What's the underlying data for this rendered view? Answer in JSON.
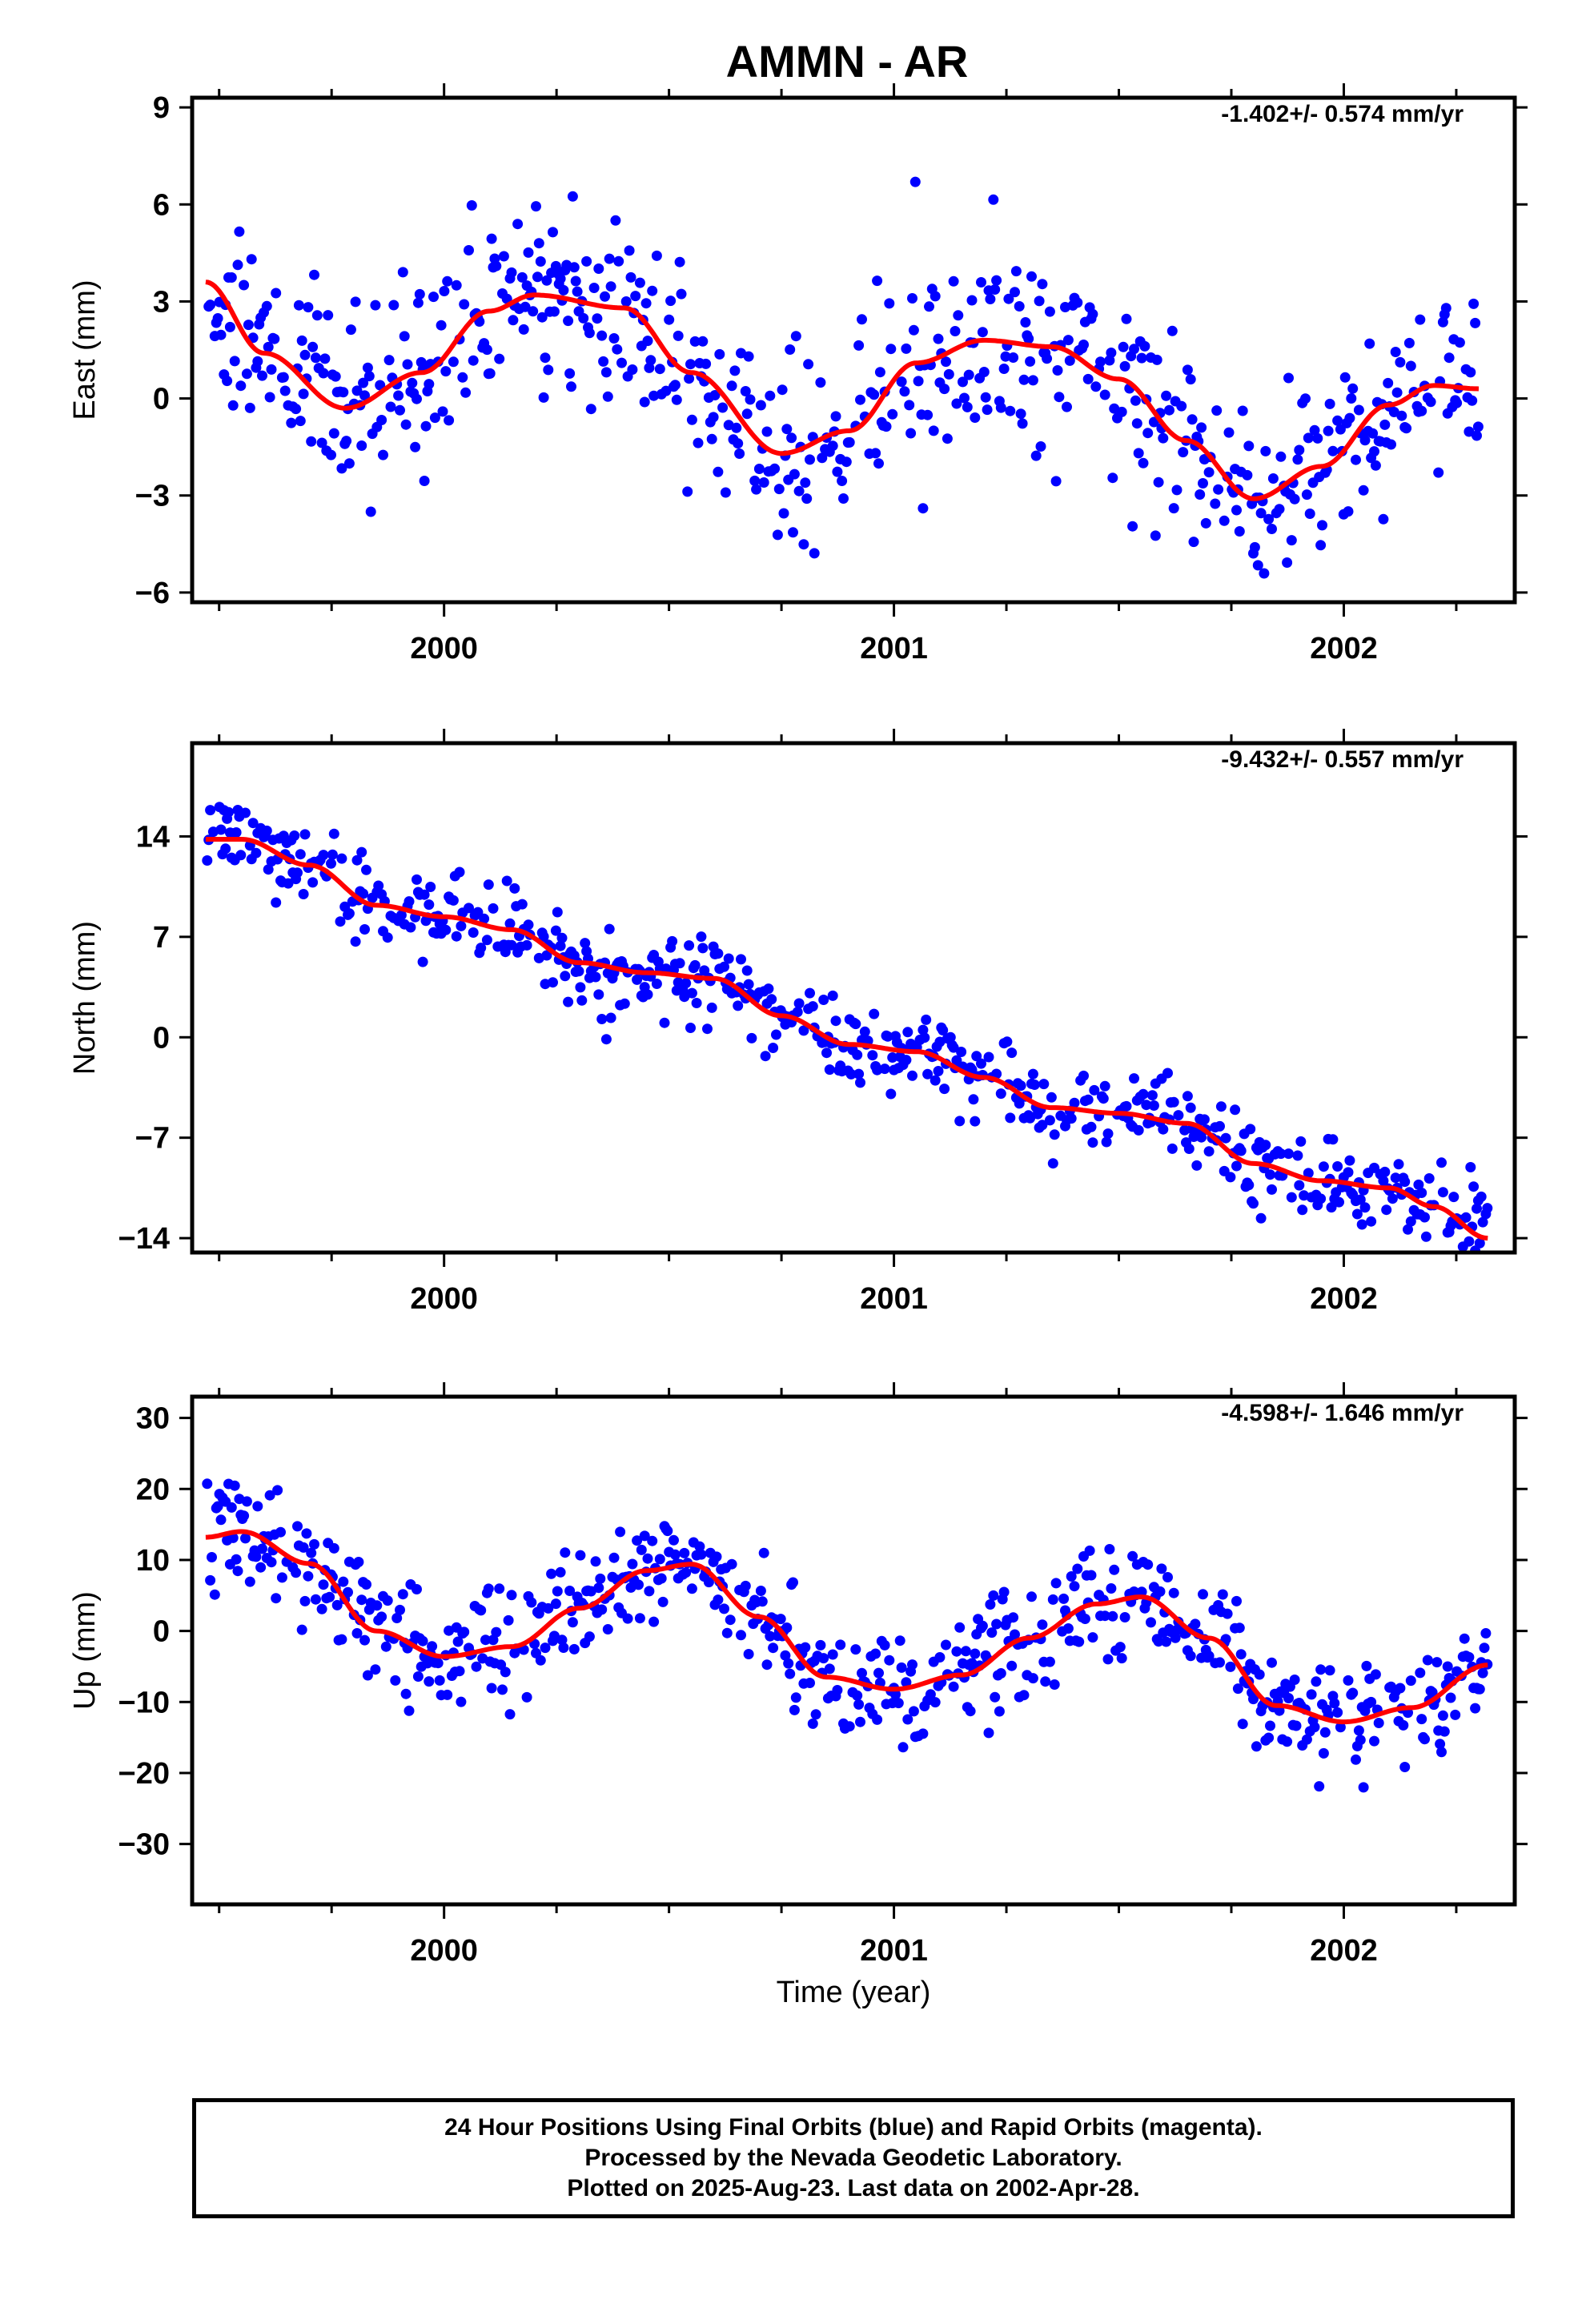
{
  "chart_data": [
    {
      "type": "scatter",
      "title": "AMMN - AR",
      "ylabel": "East (mm)",
      "xlabel": "",
      "ylim": [
        -6.3,
        9.3
      ],
      "yticks": [
        -6,
        -3,
        0,
        3,
        6,
        9
      ],
      "ytick_labels": [
        "−6",
        "−3",
        "0",
        "3",
        "6",
        "9"
      ],
      "xlim": [
        1999.44,
        2002.38
      ],
      "xticks": [
        2000,
        2001,
        2002
      ],
      "xtick_labels": [
        "2000",
        "2001",
        "2002"
      ],
      "rate": "-1.402+/- 0.574 mm/yr",
      "trend": {
        "x": [
          1999.47,
          1999.6,
          1999.78,
          1999.95,
          2000.1,
          2000.2,
          2000.4,
          2000.55,
          2000.75,
          2000.9,
          2001.05,
          2001.2,
          2001.35,
          2001.5,
          2001.65,
          2001.8,
          2001.95,
          2002.1,
          2002.2,
          2002.3
        ],
        "y": [
          3.6,
          1.4,
          -0.3,
          0.8,
          2.7,
          3.2,
          2.8,
          0.8,
          -1.7,
          -1.0,
          1.1,
          1.8,
          1.6,
          0.6,
          -1.3,
          -3.1,
          -2.1,
          -0.2,
          0.4,
          0.3
        ]
      },
      "noise": 1.5,
      "seed": 11
    },
    {
      "type": "scatter",
      "title": "",
      "ylabel": "North (mm)",
      "xlabel": "",
      "ylim": [
        -15,
        20.5
      ],
      "yticks": [
        -14,
        -7,
        0,
        7,
        14
      ],
      "ytick_labels": [
        "−14",
        "−7",
        "0",
        "7",
        "14"
      ],
      "xlim": [
        1999.44,
        2002.38
      ],
      "xticks": [
        2000,
        2001,
        2002
      ],
      "xtick_labels": [
        "2000",
        "2001",
        "2002"
      ],
      "rate": "-9.432+/- 0.557 mm/yr",
      "trend": {
        "x": [
          1999.47,
          1999.55,
          1999.7,
          1999.85,
          2000.0,
          2000.15,
          2000.3,
          2000.45,
          2000.6,
          2000.75,
          2000.9,
          2001.05,
          2001.2,
          2001.35,
          2001.5,
          2001.65,
          2001.8,
          2001.95,
          2002.1,
          2002.2,
          2002.32
        ],
        "y": [
          13.8,
          13.8,
          12.0,
          9.2,
          8.4,
          7.5,
          5.2,
          4.5,
          4.1,
          1.5,
          -0.5,
          -1.0,
          -2.8,
          -4.9,
          -5.3,
          -6.0,
          -8.8,
          -10.0,
          -10.5,
          -11.8,
          -14.0
        ]
      },
      "noise": 1.4,
      "seed": 23
    },
    {
      "type": "scatter",
      "title": "",
      "ylabel": "Up (mm)",
      "xlabel": "Time (year)",
      "ylim": [
        -38.5,
        33
      ],
      "yticks": [
        -30,
        -20,
        -10,
        0,
        10,
        20,
        30
      ],
      "ytick_labels": [
        "−30",
        "−20",
        "−10",
        "0",
        "10",
        "20",
        "30"
      ],
      "xlim": [
        1999.44,
        2002.38
      ],
      "xticks": [
        2000,
        2001,
        2002
      ],
      "xtick_labels": [
        "2000",
        "2001",
        "2002"
      ],
      "rate": "-4.598+/- 1.646 mm/yr",
      "trend": {
        "x": [
          1999.47,
          1999.55,
          1999.7,
          1999.85,
          2000.0,
          2000.15,
          2000.3,
          2000.45,
          2000.55,
          2000.7,
          2000.85,
          2001.0,
          2001.15,
          2001.3,
          2001.45,
          2001.55,
          2001.7,
          2001.85,
          2002.0,
          2002.15,
          2002.32
        ],
        "y": [
          13.2,
          14.0,
          9.5,
          0.0,
          -3.6,
          -2.2,
          3.2,
          8.5,
          9.4,
          2.0,
          -6.5,
          -8.2,
          -6.2,
          -1.0,
          3.8,
          4.8,
          -1.0,
          -10.5,
          -12.8,
          -10.8,
          -4.8
        ]
      },
      "noise": 4.0,
      "seed": 37
    }
  ],
  "footer": {
    "line1": "24 Hour Positions Using Final Orbits (blue) and Rapid Orbits (magenta).",
    "line2": "Processed by the Nevada Geodetic Laboratory.",
    "line3": "Plotted on 2025-Aug-23. Last data on 2002-Apr-28."
  },
  "colors": {
    "points": "#0000ff",
    "trend": "#ff0000",
    "frame": "#000000"
  }
}
